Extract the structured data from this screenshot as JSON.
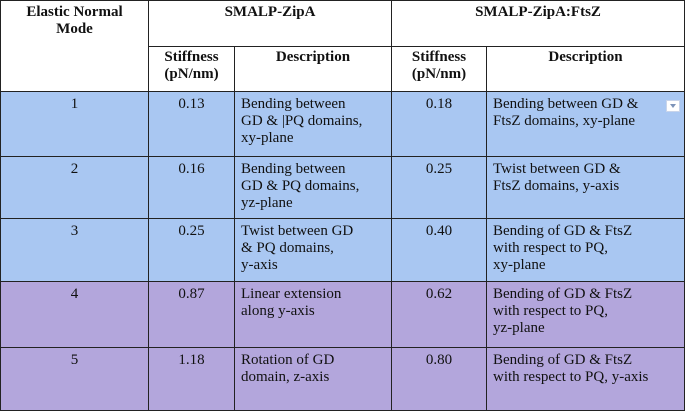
{
  "table": {
    "header": {
      "mode": [
        "Elastic Normal",
        "Mode"
      ],
      "group_zipa": "SMALP-ZipA",
      "group_ftsz": "SMALP-ZipA:FtsZ",
      "stiffness": [
        "Stiffness",
        "(pN/nm)"
      ],
      "description": "Description"
    },
    "rows": [
      {
        "mode": "1",
        "zipa_stiffness": "0.13",
        "zipa_desc": [
          "Bending between",
          "GD & |PQ domains,",
          "xy-plane"
        ],
        "ftsz_stiffness": "0.18",
        "ftsz_desc": [
          "Bending between GD &",
          "FtsZ domains, xy-plane"
        ],
        "color": "#a9c7f2"
      },
      {
        "mode": "2",
        "zipa_stiffness": "0.16",
        "zipa_desc": [
          "Bending between",
          "GD & PQ domains,",
          "yz-plane"
        ],
        "ftsz_stiffness": "0.25",
        "ftsz_desc": [
          "Twist between GD &",
          "FtsZ domains, y-axis"
        ],
        "color": "#a9c7f2"
      },
      {
        "mode": "3",
        "zipa_stiffness": "0.25",
        "zipa_desc": [
          "Twist between GD",
          "& PQ domains,",
          "y-axis"
        ],
        "ftsz_stiffness": "0.40",
        "ftsz_desc": [
          "Bending of GD & FtsZ",
          "with respect to PQ,",
          "xy-plane"
        ],
        "color": "#a9c7f2"
      },
      {
        "mode": "4",
        "zipa_stiffness": "0.87",
        "zipa_desc": [
          "Linear extension",
          "along y-axis"
        ],
        "ftsz_stiffness": "0.62",
        "ftsz_desc": [
          "Bending of GD & FtsZ",
          "with respect to PQ,",
          "yz-plane"
        ],
        "color": "#b3a6dc"
      },
      {
        "mode": "5",
        "zipa_stiffness": "1.18",
        "zipa_desc": [
          "Rotation of GD",
          "domain, z-axis"
        ],
        "ftsz_stiffness": "0.80",
        "ftsz_desc": [
          "Bending of GD & FtsZ",
          "with respect to PQ, y-axis"
        ],
        "color": "#b3a6dc"
      }
    ],
    "dropdown_icon": "chevron-down-icon"
  }
}
